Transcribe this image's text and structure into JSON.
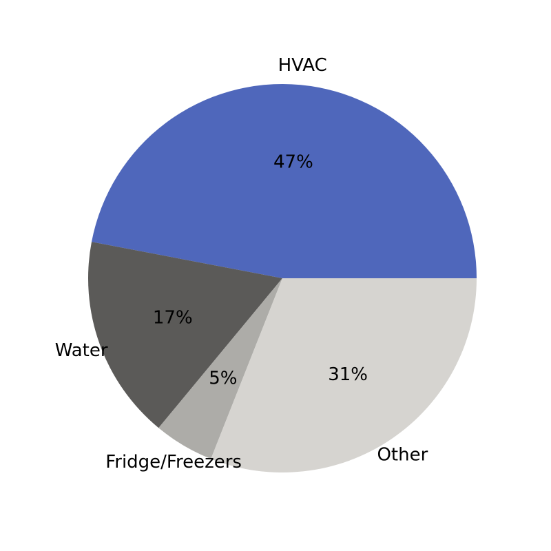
{
  "chart_data": {
    "type": "pie",
    "title": "",
    "start_angle_deg": 0,
    "direction": "counterclockwise",
    "slices": [
      {
        "label": "HVAC",
        "value": 47,
        "pct_label": "47%",
        "color": "#4f67bb"
      },
      {
        "label": "Water",
        "value": 17,
        "pct_label": "17%",
        "color": "#5b5a58"
      },
      {
        "label": "Fridge/Freezers",
        "value": 5,
        "pct_label": "5%",
        "color": "#adaca8"
      },
      {
        "label": "Other",
        "value": 31,
        "pct_label": "31%",
        "color": "#d6d4d0"
      }
    ]
  }
}
